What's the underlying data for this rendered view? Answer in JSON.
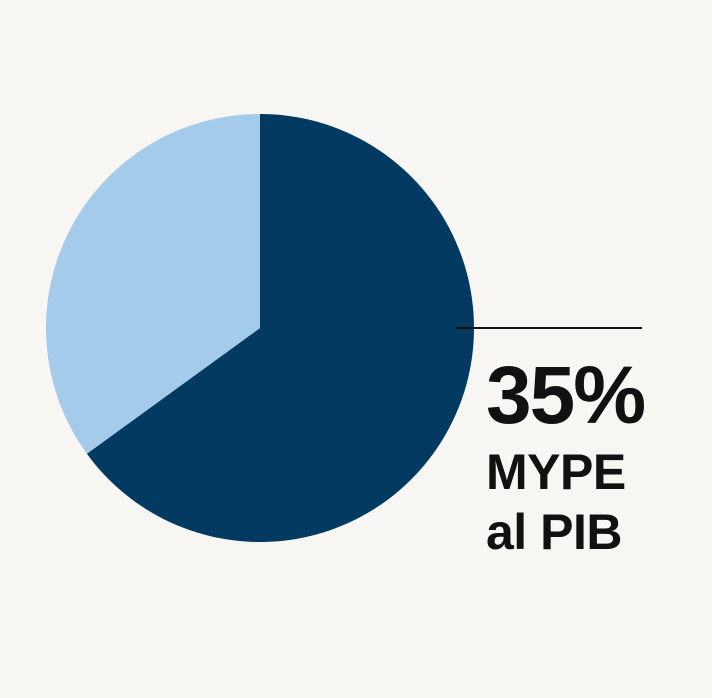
{
  "colors": {
    "background": "#f7f6f3",
    "highlight_slice": "#023a62",
    "other_slice": "#a4cbe9",
    "text": "#111111"
  },
  "chart_data": {
    "type": "pie",
    "values": [
      65,
      35
    ],
    "slice_colors": [
      "#023a62",
      "#a4cbe9"
    ],
    "start_angle_deg": 0,
    "direction": "clockwise",
    "annotation": {
      "value": "35%",
      "label_line_1": "MYPE",
      "label_line_2": "al PIB"
    }
  }
}
